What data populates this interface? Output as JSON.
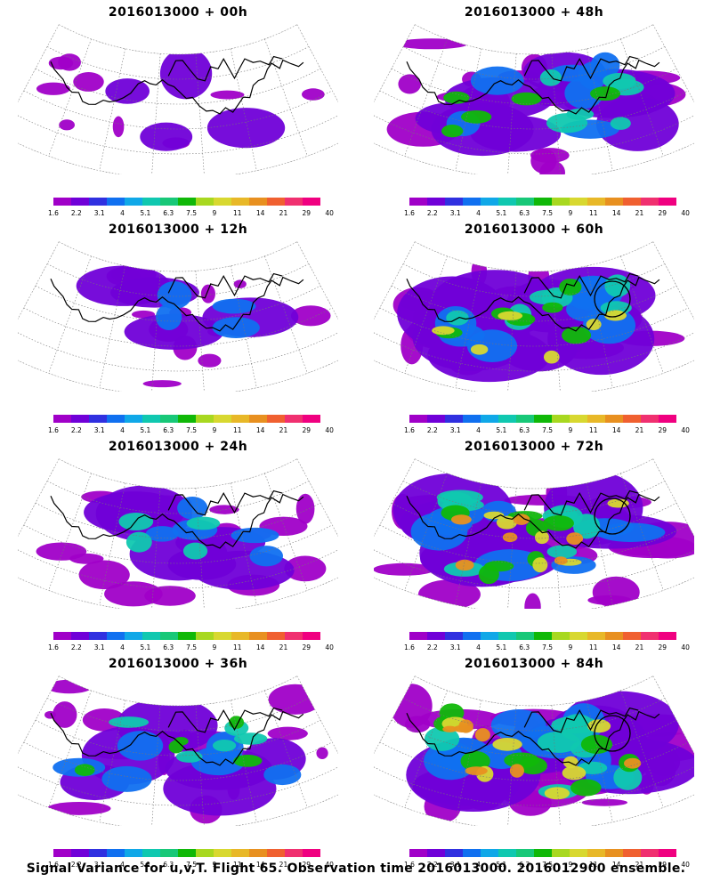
{
  "panels": [
    {
      "title": "2016013000 + 00h",
      "intensity": 0.15,
      "circle": false
    },
    {
      "title": "2016013000 + 12h",
      "intensity": 0.25,
      "circle": false
    },
    {
      "title": "2016013000 + 24h",
      "intensity": 0.4,
      "circle": false
    },
    {
      "title": "2016013000 + 36h",
      "intensity": 0.5,
      "circle": false
    },
    {
      "title": "2016013000 + 48h",
      "intensity": 0.6,
      "circle": false
    },
    {
      "title": "2016013000 + 60h",
      "intensity": 0.7,
      "circle": true
    },
    {
      "title": "2016013000 + 72h",
      "intensity": 0.8,
      "circle": true
    },
    {
      "title": "2016013000 + 84h",
      "intensity": 0.9,
      "circle": true
    }
  ],
  "colorbar": {
    "colors": [
      "#a000c8",
      "#7000d8",
      "#3030e0",
      "#1070f0",
      "#10a8e8",
      "#10c8b0",
      "#18c878",
      "#10b808",
      "#a8d820",
      "#d8d830",
      "#e8b828",
      "#e89020",
      "#f06030",
      "#f03070",
      "#f00080"
    ],
    "ticks": [
      "1.6",
      "2.2",
      "3.1",
      "4",
      "5.1",
      "6.3",
      "7.5",
      "9",
      "11",
      "14",
      "21",
      "29",
      "40"
    ]
  },
  "footer": "Signal Variance for u,v,T. Flight 65. Observation time 2016013000. 2016012900 ensemble."
}
